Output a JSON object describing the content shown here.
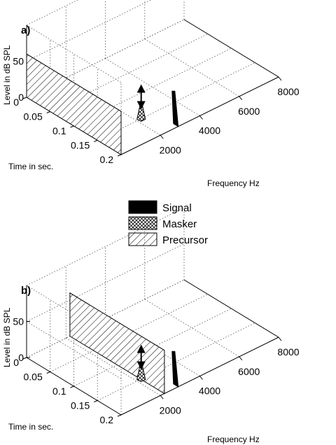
{
  "chart_data": [
    {
      "type": "area",
      "panel_label": "a)",
      "zlabel": "Level in dB SPL",
      "xlabel": "Frequency Hz",
      "ylabel": "Time in sec.",
      "x_ticks": [
        "2000",
        "4000",
        "6000",
        "8000"
      ],
      "y_ticks": [
        "0",
        "0.05",
        "0.1",
        "0.15",
        "0.2"
      ],
      "z_ticks": [
        "0",
        "50"
      ],
      "xlim": [
        0,
        8000
      ],
      "ylim": [
        0,
        0.2
      ],
      "zlim": [
        0,
        100
      ],
      "grid": true,
      "series": [
        {
          "name": "Precursor",
          "freq_start": 0,
          "freq_end": 0,
          "time_start": 0,
          "time_end": 0.2,
          "level": 60
        },
        {
          "name": "Masker",
          "freq_center": 2100,
          "time_start": 0.11,
          "time_end": 0.2,
          "level": 30
        },
        {
          "name": "Signal",
          "freq_center": 2900,
          "time_start": 0.19,
          "time_end": 0.2,
          "level": 30
        }
      ]
    },
    {
      "type": "area",
      "panel_label": "b)",
      "zlabel": "Level in dB SPL",
      "xlabel": "Frequency Hz",
      "ylabel": "Time in sec.",
      "x_ticks": [
        "2000",
        "4000",
        "6000",
        "8000"
      ],
      "y_ticks": [
        "0",
        "0.05",
        "0.1",
        "0.15",
        "0.2"
      ],
      "z_ticks": [
        "0",
        "50"
      ],
      "xlim": [
        0,
        8000
      ],
      "ylim": [
        0,
        0.2
      ],
      "zlim": [
        0,
        100
      ],
      "grid": true,
      "series": [
        {
          "name": "Precursor",
          "freq_start": 2200,
          "freq_end": 2200,
          "time_start": 0,
          "time_end": 0.2,
          "level": 60
        },
        {
          "name": "Masker",
          "freq_center": 2100,
          "time_start": 0.11,
          "time_end": 0.2,
          "level": 30
        },
        {
          "name": "Signal",
          "freq_center": 2900,
          "time_start": 0.19,
          "time_end": 0.2,
          "level": 30
        }
      ]
    }
  ],
  "legend": {
    "items": [
      {
        "label": "Signal",
        "pattern": "solid"
      },
      {
        "label": "Masker",
        "pattern": "crosshatch"
      },
      {
        "label": "Precursor",
        "pattern": "diagonal"
      }
    ]
  }
}
